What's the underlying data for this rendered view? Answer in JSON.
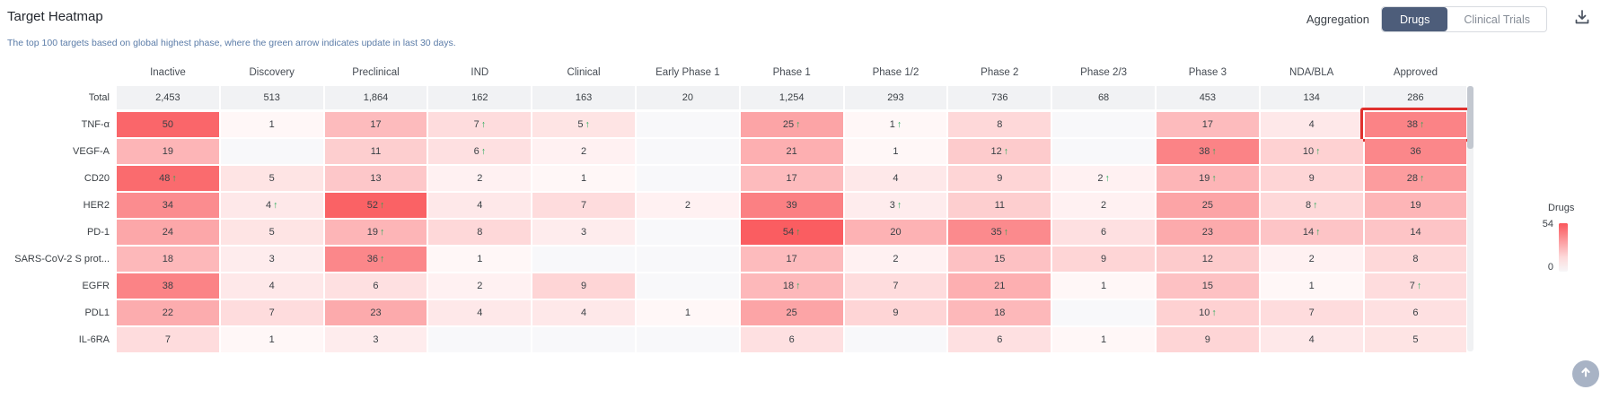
{
  "page": {
    "title": "Target Heatmap",
    "subtitle": "The top 100 targets based on global highest phase, where the green arrow indicates update in last 30 days."
  },
  "controls": {
    "aggregation_label": "Aggregation",
    "options": [
      {
        "label": "Drugs",
        "selected": true
      },
      {
        "label": "Clinical Trials",
        "selected": false
      }
    ],
    "download_icon": "download-tray-arrow"
  },
  "heatmap": {
    "type": "heatmap",
    "max_value": 54,
    "columns": [
      "Inactive",
      "Discovery",
      "Preclinical",
      "IND",
      "Clinical",
      "Early Phase 1",
      "Phase 1",
      "Phase 1/2",
      "Phase 2",
      "Phase 2/3",
      "Phase 3",
      "NDA/BLA",
      "Approved"
    ],
    "total": {
      "label": "Total",
      "values": [
        "2,453",
        "513",
        "1,864",
        "162",
        "163",
        "20",
        "1,254",
        "293",
        "736",
        "68",
        "453",
        "134",
        "286"
      ]
    },
    "rows": [
      {
        "label": "TNF-α",
        "cells": [
          {
            "v": 50
          },
          {
            "v": 1
          },
          {
            "v": 17
          },
          {
            "v": 7,
            "up": true
          },
          {
            "v": 5,
            "up": true
          },
          null,
          {
            "v": 25,
            "up": true
          },
          {
            "v": 1,
            "up": true
          },
          {
            "v": 8
          },
          null,
          {
            "v": 17
          },
          {
            "v": 4
          },
          {
            "v": 38,
            "up": true,
            "highlight": true
          }
        ]
      },
      {
        "label": "VEGF-A",
        "cells": [
          {
            "v": 19
          },
          null,
          {
            "v": 11
          },
          {
            "v": 6,
            "up": true
          },
          {
            "v": 2
          },
          null,
          {
            "v": 21
          },
          {
            "v": 1
          },
          {
            "v": 12,
            "up": true
          },
          null,
          {
            "v": 38,
            "up": true
          },
          {
            "v": 10,
            "up": true
          },
          {
            "v": 36
          }
        ]
      },
      {
        "label": "CD20",
        "cells": [
          {
            "v": 48,
            "up": true
          },
          {
            "v": 5
          },
          {
            "v": 13
          },
          {
            "v": 2
          },
          {
            "v": 1
          },
          null,
          {
            "v": 17
          },
          {
            "v": 4
          },
          {
            "v": 9
          },
          {
            "v": 2,
            "up": true
          },
          {
            "v": 19,
            "up": true
          },
          {
            "v": 9
          },
          {
            "v": 28,
            "up": true
          }
        ]
      },
      {
        "label": "HER2",
        "cells": [
          {
            "v": 34
          },
          {
            "v": 4,
            "up": true
          },
          {
            "v": 52,
            "up": true
          },
          {
            "v": 4
          },
          {
            "v": 7
          },
          {
            "v": 2
          },
          {
            "v": 39
          },
          {
            "v": 3,
            "up": true
          },
          {
            "v": 11
          },
          {
            "v": 2
          },
          {
            "v": 25
          },
          {
            "v": 8,
            "up": true
          },
          {
            "v": 19
          }
        ]
      },
      {
        "label": "PD-1",
        "cells": [
          {
            "v": 24
          },
          {
            "v": 5
          },
          {
            "v": 19,
            "up": true
          },
          {
            "v": 8
          },
          {
            "v": 3
          },
          null,
          {
            "v": 54,
            "up": true
          },
          {
            "v": 20
          },
          {
            "v": 35,
            "up": true
          },
          {
            "v": 6
          },
          {
            "v": 23
          },
          {
            "v": 14,
            "up": true
          },
          {
            "v": 14
          }
        ]
      },
      {
        "label": "SARS-CoV-2 S prot...",
        "cells": [
          {
            "v": 18
          },
          {
            "v": 3
          },
          {
            "v": 36,
            "up": true
          },
          {
            "v": 1
          },
          null,
          null,
          {
            "v": 17
          },
          {
            "v": 2
          },
          {
            "v": 15
          },
          {
            "v": 9
          },
          {
            "v": 12
          },
          {
            "v": 2
          },
          {
            "v": 8
          }
        ]
      },
      {
        "label": "EGFR",
        "cells": [
          {
            "v": 38
          },
          {
            "v": 4
          },
          {
            "v": 6
          },
          {
            "v": 2
          },
          {
            "v": 9
          },
          null,
          {
            "v": 18,
            "up": true
          },
          {
            "v": 7
          },
          {
            "v": 21
          },
          {
            "v": 1
          },
          {
            "v": 15
          },
          {
            "v": 1
          },
          {
            "v": 7,
            "up": true
          }
        ]
      },
      {
        "label": "PDL1",
        "cells": [
          {
            "v": 22
          },
          {
            "v": 7
          },
          {
            "v": 23
          },
          {
            "v": 4
          },
          {
            "v": 4
          },
          {
            "v": 1
          },
          {
            "v": 25
          },
          {
            "v": 9
          },
          {
            "v": 18
          },
          null,
          {
            "v": 10,
            "up": true
          },
          {
            "v": 7
          },
          {
            "v": 6
          }
        ]
      },
      {
        "label": "IL-6RA",
        "cells": [
          {
            "v": 7
          },
          {
            "v": 1
          },
          {
            "v": 3
          },
          null,
          null,
          null,
          {
            "v": 6
          },
          null,
          {
            "v": 6
          },
          {
            "v": 1
          },
          {
            "v": 9
          },
          {
            "v": 4
          },
          {
            "v": 5
          }
        ]
      }
    ]
  },
  "legend": {
    "title": "Drugs",
    "max": "54",
    "min": "0"
  },
  "floating": {
    "scroll_top_icon": "arrow-up"
  },
  "colors": {
    "heat_base": "#fa5d61",
    "empty_cell": "#f8f8fa",
    "total_cell": "#f1f2f4",
    "arrow_green": "#1fa953",
    "highlight_border": "#e0312e",
    "toggle_active_bg": "#4d5d7a",
    "subtitle_text": "#5b7ca8"
  }
}
